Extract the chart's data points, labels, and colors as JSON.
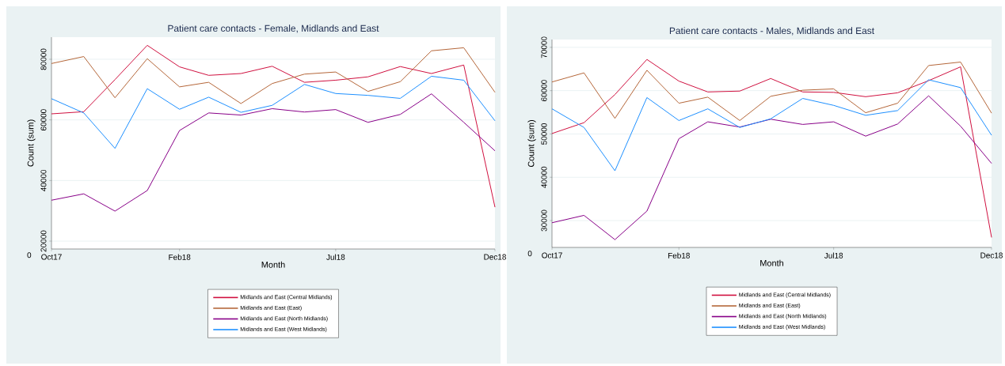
{
  "chart_data": [
    {
      "type": "line",
      "title": "Patient care contacts - Female, Midlands and East",
      "xlabel": "Month",
      "ylabel": "Count (sum)",
      "x": [
        "2017-10",
        "2017-11",
        "2017-12",
        "2018-01",
        "2018-02",
        "2018-03",
        "2018-04",
        "2018-05",
        "2018-06",
        "2018-07",
        "2018-08",
        "2018-09",
        "2018-10",
        "2018-11",
        "2018-12"
      ],
      "series": [
        {
          "name": "Midlands and East (Central Midlands)",
          "color": "#d0103f",
          "values": [
            62000,
            62700,
            73300,
            84600,
            77500,
            74700,
            75300,
            77700,
            72400,
            73100,
            74200,
            77600,
            75300,
            78100,
            31200
          ]
        },
        {
          "name": "Midlands and East (East)",
          "color": "#b5673a",
          "values": [
            78600,
            80900,
            67300,
            80200,
            70900,
            72400,
            65400,
            72000,
            75100,
            75800,
            69400,
            72600,
            82800,
            83800,
            69100
          ]
        },
        {
          "name": "Midlands and East (North Midlands)",
          "color": "#880088",
          "values": [
            33500,
            35600,
            29900,
            36700,
            56500,
            62300,
            61600,
            63700,
            62600,
            63400,
            59200,
            61800,
            68600,
            59200,
            49800
          ]
        },
        {
          "name": "Midlands and East (West Midlands)",
          "color": "#1e90ff",
          "values": [
            67000,
            62300,
            50600,
            70300,
            63500,
            67500,
            62500,
            64800,
            71700,
            68700,
            68100,
            67100,
            74400,
            73100,
            59700
          ]
        }
      ],
      "xlim": [
        "2017-10",
        "2018-12"
      ],
      "xticks": [
        {
          "value": "2017-10",
          "label": "Oct17"
        },
        {
          "value": "2018-02",
          "label": "Feb18"
        },
        {
          "value": "2018-07",
          "label": "Jul18"
        },
        {
          "value": "2018-12",
          "label": "Dec18"
        }
      ],
      "ylim": [
        17400,
        87300
      ],
      "yticks": [
        20000,
        40000,
        60000,
        80000
      ],
      "grid": "y",
      "legend": "bottom",
      "annotations": [
        "0"
      ]
    },
    {
      "type": "line",
      "title": "Patient care contacts - Males, Midlands and East",
      "xlabel": "Month",
      "ylabel": "Count (sum)",
      "x": [
        "2017-10",
        "2017-11",
        "2017-12",
        "2018-01",
        "2018-02",
        "2018-03",
        "2018-04",
        "2018-05",
        "2018-06",
        "2018-07",
        "2018-08",
        "2018-09",
        "2018-10",
        "2018-11",
        "2018-12"
      ],
      "series": [
        {
          "name": "Midlands and East (Central Midlands)",
          "color": "#d0103f",
          "values": [
            50100,
            52600,
            59100,
            67200,
            62200,
            59700,
            59900,
            62800,
            59700,
            59600,
            58600,
            59500,
            62300,
            65500,
            26100
          ]
        },
        {
          "name": "Midlands and East (East)",
          "color": "#b5673a",
          "values": [
            62000,
            64100,
            53600,
            64700,
            57100,
            58500,
            53100,
            58700,
            60100,
            60400,
            54900,
            57100,
            65800,
            66600,
            54800
          ]
        },
        {
          "name": "Midlands and East (North Midlands)",
          "color": "#880088",
          "values": [
            29500,
            31200,
            25600,
            32200,
            48900,
            52800,
            51600,
            53400,
            52200,
            52800,
            49500,
            52300,
            58800,
            51800,
            43200
          ]
        },
        {
          "name": "Midlands and East (West Midlands)",
          "color": "#1e90ff",
          "values": [
            55800,
            51500,
            41500,
            58400,
            53100,
            55800,
            51500,
            53500,
            58200,
            56600,
            54300,
            55400,
            62500,
            60700,
            49700
          ]
        }
      ],
      "xlim": [
        "2017-10",
        "2018-12"
      ],
      "xticks": [
        {
          "value": "2017-10",
          "label": "Oct17"
        },
        {
          "value": "2018-02",
          "label": "Feb18"
        },
        {
          "value": "2018-07",
          "label": "Jul18"
        },
        {
          "value": "2018-12",
          "label": "Dec18"
        }
      ],
      "ylim": [
        23800,
        71800
      ],
      "yticks": [
        30000,
        40000,
        50000,
        60000,
        70000
      ],
      "grid": "y",
      "legend": "bottom",
      "annotations": [
        "0"
      ]
    }
  ]
}
